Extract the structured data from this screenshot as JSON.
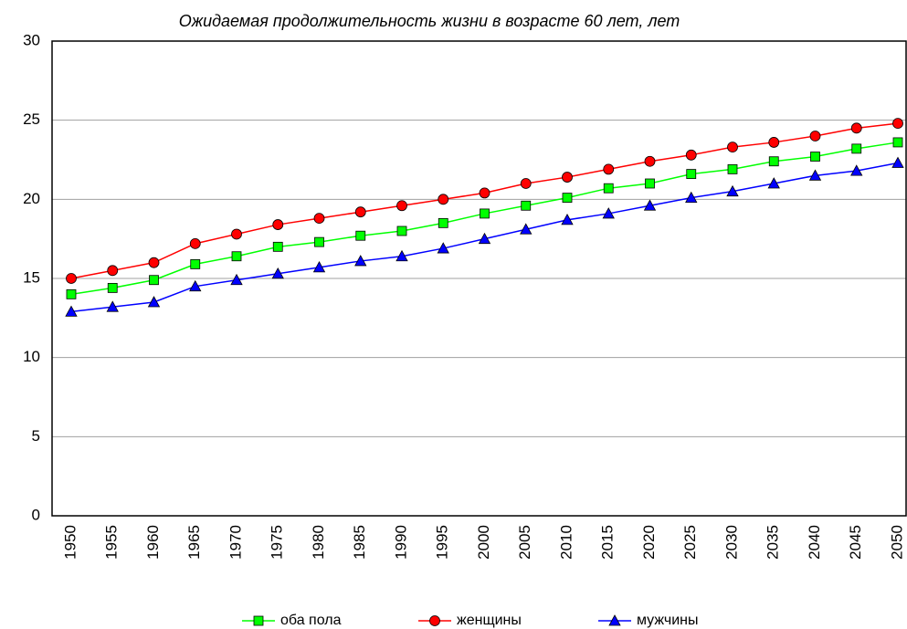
{
  "chart_data": {
    "type": "line",
    "title": "Ожидаемая продолжительность жизни в возрасте 60 лет, лет",
    "categories": [
      "1950",
      "1955",
      "1960",
      "1965",
      "1970",
      "1975",
      "1980",
      "1985",
      "1990",
      "1995",
      "2000",
      "2005",
      "2010",
      "2015",
      "2020",
      "2025",
      "2030",
      "2035",
      "2040",
      "2045",
      "2050"
    ],
    "series": [
      {
        "name": "оба пола",
        "color": "#00ff00",
        "marker": "square",
        "values": [
          14.0,
          14.4,
          14.9,
          15.9,
          16.4,
          17.0,
          17.3,
          17.7,
          18.0,
          18.5,
          19.1,
          19.6,
          20.1,
          20.7,
          21.0,
          21.6,
          21.9,
          22.4,
          22.7,
          23.2,
          23.6
        ]
      },
      {
        "name": "женщины",
        "color": "#ff0000",
        "marker": "circle",
        "values": [
          15.0,
          15.5,
          16.0,
          17.2,
          17.8,
          18.4,
          18.8,
          19.2,
          19.6,
          20.0,
          20.4,
          21.0,
          21.4,
          21.9,
          22.4,
          22.8,
          23.3,
          23.6,
          24.0,
          24.5,
          24.8
        ]
      },
      {
        "name": "мужчины",
        "color": "#0000ff",
        "marker": "triangle",
        "values": [
          12.9,
          13.2,
          13.5,
          14.5,
          14.9,
          15.3,
          15.7,
          16.1,
          16.4,
          16.9,
          17.5,
          18.1,
          18.7,
          19.1,
          19.6,
          20.1,
          20.5,
          21.0,
          21.5,
          21.8,
          22.3
        ]
      }
    ],
    "ylim": [
      0,
      30
    ],
    "yticks": [
      0,
      5,
      10,
      15,
      20,
      25,
      30
    ],
    "grid": true,
    "legend": "bottom"
  }
}
